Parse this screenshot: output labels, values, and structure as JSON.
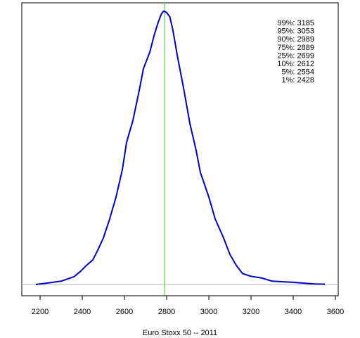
{
  "chart_data": {
    "type": "line",
    "xlabel": "Euro Stoxx 50 -- 2011",
    "ylabel": "",
    "xlim": [
      2150,
      3600
    ],
    "ylim": [
      0,
      1
    ],
    "xticks": [
      "2200",
      "2400",
      "2600",
      "2800",
      "3000",
      "3200",
      "3400",
      "3600"
    ],
    "grid": false,
    "series": [
      {
        "color": "#0000cc",
        "x": [
          2180,
          2230,
          2300,
          2360,
          2390,
          2420,
          2450,
          2470,
          2500,
          2530,
          2560,
          2590,
          2610,
          2640,
          2670,
          2690,
          2720,
          2740,
          2760,
          2775,
          2785,
          2790,
          2800,
          2815,
          2830,
          2850,
          2880,
          2910,
          2940,
          2960,
          3000,
          3030,
          3070,
          3100,
          3130,
          3160,
          3200,
          3250,
          3300,
          3350,
          3400,
          3450,
          3500,
          3550
        ],
        "y": [
          0.0,
          0.005,
          0.012,
          0.028,
          0.047,
          0.07,
          0.09,
          0.12,
          0.17,
          0.24,
          0.32,
          0.42,
          0.52,
          0.6,
          0.71,
          0.79,
          0.85,
          0.91,
          0.96,
          0.99,
          1.0,
          1.0,
          0.995,
          0.98,
          0.93,
          0.84,
          0.72,
          0.59,
          0.49,
          0.41,
          0.32,
          0.24,
          0.17,
          0.11,
          0.07,
          0.04,
          0.03,
          0.024,
          0.012,
          0.01,
          0.008,
          0.005,
          0.002,
          0.001
        ]
      }
    ],
    "reference_line": {
      "x": 2790,
      "color": "#33cc33"
    },
    "baseline_color": "#b0b0b0",
    "quantiles": [
      "99%: 3185",
      "95%: 3053",
      "90%: 2989",
      "75%: 2889",
      "25%: 2699",
      "10%: 2612",
      "5%: 2554",
      "1%: 2428"
    ]
  }
}
